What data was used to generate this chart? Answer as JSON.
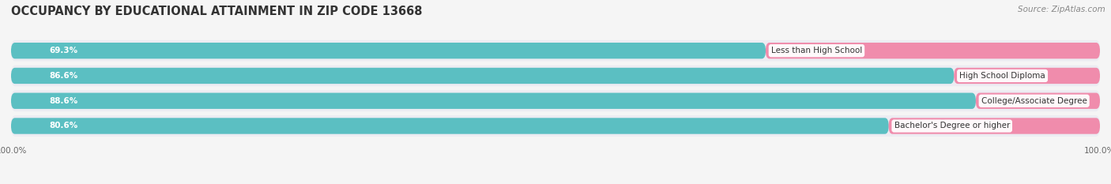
{
  "title": "OCCUPANCY BY EDUCATIONAL ATTAINMENT IN ZIP CODE 13668",
  "source": "Source: ZipAtlas.com",
  "categories": [
    "Less than High School",
    "High School Diploma",
    "College/Associate Degree",
    "Bachelor's Degree or higher"
  ],
  "owner_pct": [
    69.3,
    86.6,
    88.6,
    80.6
  ],
  "renter_pct": [
    30.7,
    13.4,
    11.4,
    19.4
  ],
  "owner_color": "#5bbfc2",
  "renter_color": "#f08cac",
  "bg_color": "#f5f5f5",
  "bar_bg_color": "#e8e8ee",
  "row_bg_color": "#ececf2",
  "title_fontsize": 10.5,
  "source_fontsize": 7.5,
  "label_fontsize": 7.5,
  "pct_fontsize": 7.5,
  "axis_label_fontsize": 7.5,
  "legend_fontsize": 8
}
